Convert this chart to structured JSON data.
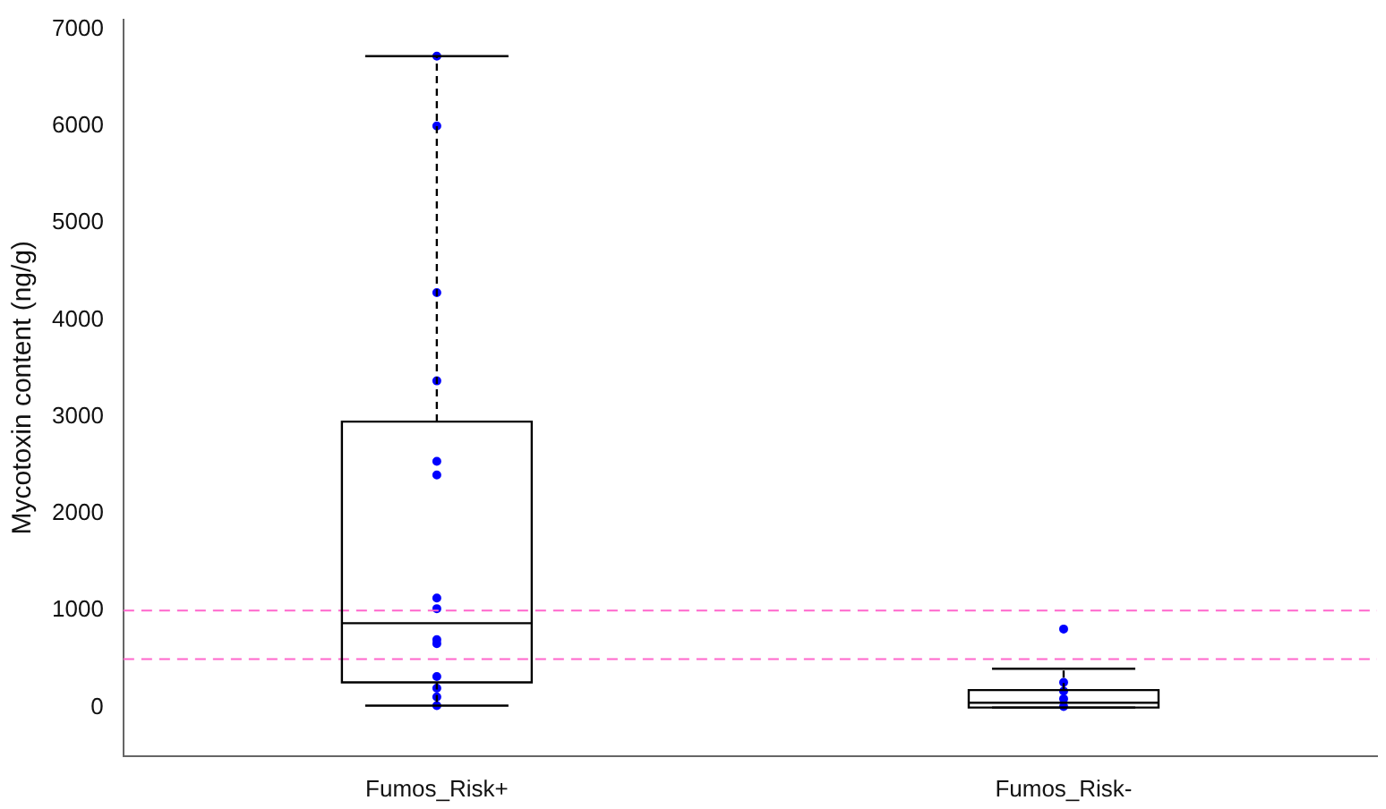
{
  "chart_data": {
    "type": "box",
    "ylabel": "Mycotoxin content (ng/g)",
    "categories": [
      "Fumos_Risk+",
      "Fumos_Risk-"
    ],
    "ylim": [
      -500,
      7100
    ],
    "yticks": [
      0,
      1000,
      2000,
      3000,
      4000,
      5000,
      6000,
      7000
    ],
    "grid": false,
    "marker": "circle",
    "series": [
      {
        "type": "box",
        "color": "#000000",
        "boxes": [
          {
            "low": 20,
            "q1": 260,
            "median": 870,
            "q3": 2950,
            "high": 6720
          },
          {
            "low": 0,
            "q1": 0,
            "median": 50,
            "q3": 180,
            "high": 400
          }
        ]
      },
      {
        "type": "scatter",
        "color": "#0000ff",
        "x": [
          "Fumos_Risk+",
          "Fumos_Risk+",
          "Fumos_Risk+",
          "Fumos_Risk+",
          "Fumos_Risk+",
          "Fumos_Risk+",
          "Fumos_Risk+",
          "Fumos_Risk+",
          "Fumos_Risk+",
          "Fumos_Risk+",
          "Fumos_Risk+",
          "Fumos_Risk+",
          "Fumos_Risk+",
          "Fumos_Risk+",
          "Fumos_Risk-",
          "Fumos_Risk-",
          "Fumos_Risk-",
          "Fumos_Risk-",
          "Fumos_Risk-",
          "Fumos_Risk-"
        ],
        "values": [
          6720,
          6000,
          4280,
          3370,
          2540,
          2400,
          1130,
          1020,
          700,
          660,
          320,
          200,
          110,
          20,
          810,
          260,
          170,
          90,
          null,
          10
        ]
      }
    ],
    "ref_lines": [
      {
        "axis": "y",
        "value": 1000,
        "color": "#ff66cc",
        "line_style": "dashed"
      },
      {
        "axis": "y",
        "value": 500,
        "color": "#ff66cc",
        "line_style": "dashed"
      }
    ]
  }
}
